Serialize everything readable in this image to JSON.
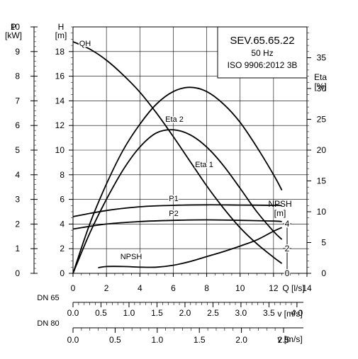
{
  "chart_data": {
    "type": "line",
    "title_box": {
      "line1": "SEV.65.65.22",
      "line2": "50 Hz",
      "line3": "ISO 9906:2012 3B"
    },
    "axes": {
      "power": {
        "unit_top": "P",
        "unit_bottom": "[kW]",
        "range": [
          0,
          10
        ],
        "ticks": [
          "0",
          "1",
          "2",
          "3",
          "4",
          "5",
          "6",
          "7",
          "8",
          "9",
          "10"
        ]
      },
      "head": {
        "unit_top": "H",
        "unit_bottom": "[m]",
        "range": [
          0,
          20
        ],
        "ticks": [
          "0",
          "2",
          "4",
          "6",
          "8",
          "10",
          "12",
          "14",
          "16",
          "18"
        ]
      },
      "eta": {
        "unit_top": "Eta",
        "unit_bottom": "[%]",
        "range": [
          0,
          40
        ],
        "ticks": [
          "0",
          "5",
          "10",
          "15",
          "20",
          "25",
          "30",
          "35"
        ]
      },
      "npsh": {
        "unit_top": "NPSH",
        "unit_bottom": "[m]",
        "range": [
          0,
          4
        ],
        "ticks": [
          "0",
          "2",
          "4"
        ]
      },
      "flow": {
        "label": "Q [l/s]",
        "range": [
          0,
          14
        ],
        "ticks": [
          "0",
          "2",
          "4",
          "6",
          "8",
          "10",
          "12",
          "14"
        ]
      }
    },
    "velocity_scales": [
      {
        "label": "DN 65",
        "unit": "v [m/s]",
        "max": 4.0,
        "ticks": [
          "0.0",
          "0.5",
          "1.0",
          "1.5",
          "2.0",
          "2.5",
          "3.0",
          "3.5",
          "4.0"
        ]
      },
      {
        "label": "DN 80",
        "unit": "v [m/s]",
        "max": 2.5,
        "ticks": [
          "0.0",
          "0.5",
          "1.0",
          "1.5",
          "2.0",
          "2.5"
        ]
      }
    ],
    "series": [
      {
        "name": "QH",
        "axis": "head",
        "x": [
          0,
          1,
          2,
          3,
          4,
          5,
          6,
          7,
          8,
          9,
          10,
          11,
          12,
          12.5
        ],
        "y": [
          18.8,
          18.2,
          17.3,
          16.1,
          14.7,
          13.0,
          11.1,
          9.1,
          7.1,
          5.3,
          3.7,
          2.4,
          1.3,
          0.8
        ]
      },
      {
        "name": "Eta 2",
        "axis": "eta",
        "x": [
          0,
          1,
          2,
          3,
          4,
          5,
          6,
          7,
          8,
          9,
          10,
          11,
          12,
          12.5
        ],
        "y": [
          0,
          8,
          14.5,
          20,
          24.2,
          27.5,
          29.5,
          30.2,
          29.5,
          27.5,
          24.5,
          20.5,
          16,
          13.5
        ]
      },
      {
        "name": "Eta 1",
        "axis": "eta",
        "x": [
          0,
          1,
          2,
          3,
          4,
          5,
          6,
          7,
          8,
          9,
          10,
          11,
          12,
          12.5
        ],
        "y": [
          0,
          6.5,
          12,
          16.8,
          20.5,
          22.8,
          23.3,
          22.5,
          20.5,
          17.5,
          13.8,
          10,
          6.8,
          5.5
        ]
      },
      {
        "name": "P1",
        "axis": "power",
        "x": [
          0,
          2,
          4,
          6,
          8,
          10,
          12,
          12.5
        ],
        "y": [
          2.3,
          2.55,
          2.7,
          2.76,
          2.78,
          2.77,
          2.76,
          2.75
        ]
      },
      {
        "name": "P2",
        "axis": "power",
        "x": [
          0,
          2,
          4,
          6,
          8,
          10,
          12,
          12.5
        ],
        "y": [
          1.8,
          2.0,
          2.1,
          2.15,
          2.17,
          2.15,
          2.12,
          2.1
        ]
      },
      {
        "name": "NPSH",
        "axis": "npsh",
        "x": [
          1.5,
          2,
          3,
          4,
          5,
          6,
          7,
          8,
          9,
          10,
          11,
          12,
          12.5
        ],
        "y": [
          0.45,
          0.55,
          0.55,
          0.5,
          0.5,
          0.65,
          0.95,
          1.35,
          1.75,
          2.2,
          2.7,
          3.4,
          3.7
        ]
      }
    ],
    "grid": true
  }
}
